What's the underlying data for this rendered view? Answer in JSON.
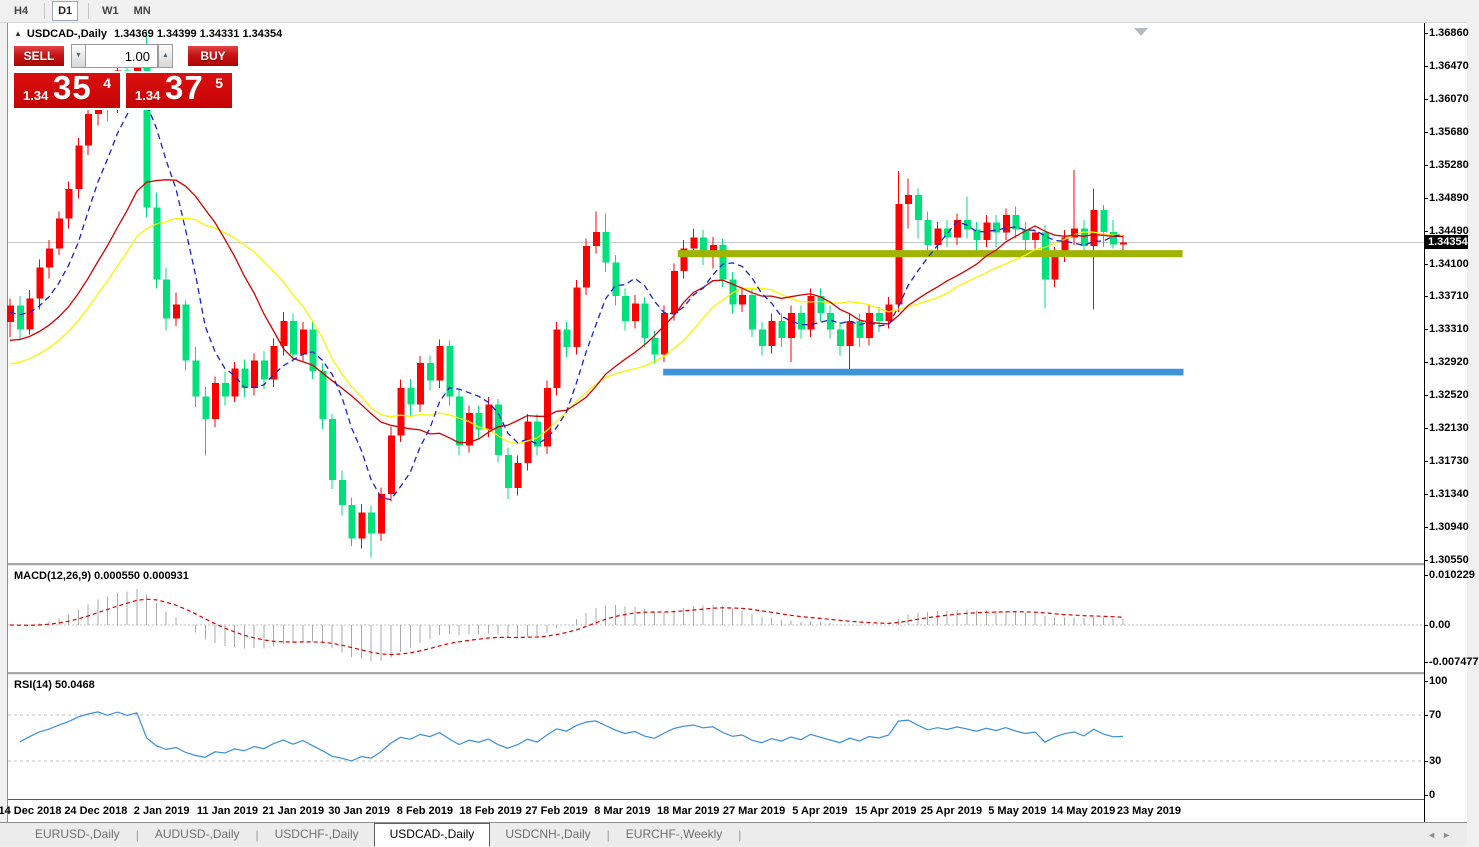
{
  "toolbar": {
    "timeframes": [
      {
        "label": "H4",
        "active": false
      },
      {
        "label": "D1",
        "active": true
      },
      {
        "label": "W1",
        "active": false
      },
      {
        "label": "MN",
        "active": false
      }
    ]
  },
  "chart_header": {
    "collapse_icon": "▲",
    "symbol_title": "USDCAD-,Daily",
    "ohlc": "1.34369 1.34399 1.34331 1.34354"
  },
  "trade_panel": {
    "sell_label": "SELL",
    "buy_label": "BUY",
    "volume": "1.00",
    "spin_down_icon": "▼",
    "spin_up_icon": "▲",
    "sell_price": {
      "big_figure": "1.34",
      "pips": "35",
      "pipette": "4"
    },
    "buy_price": {
      "big_figure": "1.34",
      "pips": "37",
      "pipette": "5"
    }
  },
  "indicators": {
    "macd_label": "MACD(12,26,9)",
    "macd_values": "0.000550 0.000931",
    "rsi_label": "RSI(14)",
    "rsi_value": "50.0468"
  },
  "tabs": {
    "items": [
      {
        "label": "EURUSD-,Daily",
        "active": false
      },
      {
        "label": "AUDUSD-,Daily",
        "active": false
      },
      {
        "label": "USDCHF-,Daily",
        "active": false
      },
      {
        "label": "USDCAD-,Daily",
        "active": true
      },
      {
        "label": "USDCNH-,Daily",
        "active": false
      },
      {
        "label": "EURCHF-,Weekly",
        "active": false
      }
    ],
    "scroll_left": "◄",
    "scroll_right": "►"
  },
  "chart_data": {
    "type": "candlestick",
    "symbol": "USDCAD-,Daily",
    "up_color": "#ff0000",
    "down_color": "#00e17c",
    "current_price": 1.34354,
    "current_price_label": "1.34354",
    "price_ticks": [
      "1.36860",
      "1.36470",
      "1.36070",
      "1.35680",
      "1.35280",
      "1.34890",
      "1.34490",
      "1.34100",
      "1.33710",
      "1.33310",
      "1.32920",
      "1.32520",
      "1.32130",
      "1.31730",
      "1.31340",
      "1.30940",
      "1.30550"
    ],
    "price_range": [
      1.3055,
      1.3686
    ],
    "time_labels": [
      "14 Dec 2018",
      "24 Dec 2018",
      "2 Jan 2019",
      "11 Jan 2019",
      "21 Jan 2019",
      "30 Jan 2019",
      "8 Feb 2019",
      "18 Feb 2019",
      "27 Feb 2019",
      "8 Mar 2019",
      "18 Mar 2019",
      "27 Mar 2019",
      "5 Apr 2019",
      "15 Apr 2019",
      "25 Apr 2019",
      "5 May 2019",
      "14 May 2019",
      "23 May 2019"
    ],
    "candles": [
      [
        1.334,
        1.3368,
        1.3322,
        1.336
      ],
      [
        1.336,
        1.3371,
        1.3318,
        1.3331
      ],
      [
        1.3331,
        1.3378,
        1.3325,
        1.3368
      ],
      [
        1.3368,
        1.3415,
        1.3355,
        1.3405
      ],
      [
        1.3405,
        1.3438,
        1.3392,
        1.3428
      ],
      [
        1.3428,
        1.3472,
        1.342,
        1.3464
      ],
      [
        1.3464,
        1.3508,
        1.3452,
        1.3499
      ],
      [
        1.3499,
        1.356,
        1.3488,
        1.3551
      ],
      [
        1.3551,
        1.36,
        1.354,
        1.3589
      ],
      [
        1.3589,
        1.3628,
        1.3575,
        1.3617
      ],
      [
        1.3617,
        1.3625,
        1.358,
        1.3599
      ],
      [
        1.3599,
        1.365,
        1.359,
        1.3641
      ],
      [
        1.3641,
        1.3652,
        1.36,
        1.3624
      ],
      [
        1.3624,
        1.3668,
        1.3614,
        1.3657
      ],
      [
        1.3657,
        1.3688,
        1.3465,
        1.3477
      ],
      [
        1.3477,
        1.3495,
        1.338,
        1.3391
      ],
      [
        1.3391,
        1.3405,
        1.333,
        1.3344
      ],
      [
        1.3344,
        1.3375,
        1.3335,
        1.3361
      ],
      [
        1.3361,
        1.3366,
        1.3282,
        1.3294
      ],
      [
        1.3294,
        1.331,
        1.3238,
        1.3251
      ],
      [
        1.3251,
        1.3262,
        1.318,
        1.3224
      ],
      [
        1.3224,
        1.3275,
        1.3214,
        1.3267
      ],
      [
        1.3267,
        1.328,
        1.324,
        1.3251
      ],
      [
        1.3251,
        1.3292,
        1.3244,
        1.3284
      ],
      [
        1.3284,
        1.3295,
        1.325,
        1.3261
      ],
      [
        1.3261,
        1.3302,
        1.3252,
        1.3294
      ],
      [
        1.3294,
        1.3305,
        1.326,
        1.3271
      ],
      [
        1.3271,
        1.332,
        1.3262,
        1.3311
      ],
      [
        1.3311,
        1.3352,
        1.33,
        1.3341
      ],
      [
        1.3341,
        1.335,
        1.3292,
        1.3301
      ],
      [
        1.3301,
        1.334,
        1.3292,
        1.3331
      ],
      [
        1.3331,
        1.334,
        1.3272,
        1.3281
      ],
      [
        1.3281,
        1.329,
        1.3212,
        1.3224
      ],
      [
        1.3224,
        1.323,
        1.314,
        1.3151
      ],
      [
        1.3151,
        1.3162,
        1.3108,
        1.3121
      ],
      [
        1.3121,
        1.313,
        1.3072,
        1.3081
      ],
      [
        1.3081,
        1.3122,
        1.3069,
        1.3112
      ],
      [
        1.3112,
        1.312,
        1.3058,
        1.3087
      ],
      [
        1.3087,
        1.3142,
        1.3078,
        1.3134
      ],
      [
        1.3134,
        1.3215,
        1.3125,
        1.3204
      ],
      [
        1.3204,
        1.3271,
        1.3196,
        1.3261
      ],
      [
        1.3261,
        1.3272,
        1.3228,
        1.3241
      ],
      [
        1.3241,
        1.3299,
        1.3232,
        1.3291
      ],
      [
        1.3291,
        1.33,
        1.3258,
        1.327
      ],
      [
        1.327,
        1.3319,
        1.3261,
        1.3311
      ],
      [
        1.3311,
        1.3318,
        1.324,
        1.3251
      ],
      [
        1.3251,
        1.326,
        1.3181,
        1.3192
      ],
      [
        1.3192,
        1.324,
        1.3184,
        1.3231
      ],
      [
        1.3231,
        1.324,
        1.32,
        1.3211
      ],
      [
        1.3211,
        1.325,
        1.3202,
        1.3241
      ],
      [
        1.3241,
        1.3248,
        1.3172,
        1.3181
      ],
      [
        1.3181,
        1.319,
        1.3128,
        1.3141
      ],
      [
        1.3141,
        1.318,
        1.3132,
        1.3171
      ],
      [
        1.3171,
        1.323,
        1.3162,
        1.3221
      ],
      [
        1.3221,
        1.323,
        1.318,
        1.3191
      ],
      [
        1.3191,
        1.327,
        1.3182,
        1.3261
      ],
      [
        1.3261,
        1.334,
        1.3252,
        1.3331
      ],
      [
        1.3331,
        1.334,
        1.3298,
        1.331
      ],
      [
        1.331,
        1.339,
        1.3301,
        1.3381
      ],
      [
        1.3381,
        1.344,
        1.3372,
        1.3431
      ],
      [
        1.3431,
        1.3472,
        1.3422,
        1.3448
      ],
      [
        1.3448,
        1.347,
        1.34,
        1.3411
      ],
      [
        1.3411,
        1.342,
        1.336,
        1.3371
      ],
      [
        1.3371,
        1.338,
        1.333,
        1.3341
      ],
      [
        1.3341,
        1.3372,
        1.3332,
        1.3362
      ],
      [
        1.3362,
        1.337,
        1.331,
        1.3321
      ],
      [
        1.3321,
        1.333,
        1.329,
        1.3301
      ],
      [
        1.3301,
        1.336,
        1.3292,
        1.3351
      ],
      [
        1.3351,
        1.341,
        1.3342,
        1.3401
      ],
      [
        1.3401,
        1.3438,
        1.3392,
        1.3428
      ],
      [
        1.3428,
        1.3452,
        1.3418,
        1.3441
      ],
      [
        1.3441,
        1.345,
        1.3408,
        1.3421
      ],
      [
        1.3421,
        1.3442,
        1.3404,
        1.3432
      ],
      [
        1.3432,
        1.344,
        1.3382,
        1.3391
      ],
      [
        1.3391,
        1.34,
        1.335,
        1.3361
      ],
      [
        1.3361,
        1.3382,
        1.3352,
        1.3372
      ],
      [
        1.3372,
        1.338,
        1.3322,
        1.3331
      ],
      [
        1.3331,
        1.334,
        1.33,
        1.3311
      ],
      [
        1.3311,
        1.335,
        1.3302,
        1.3341
      ],
      [
        1.3341,
        1.335,
        1.331,
        1.3321
      ],
      [
        1.3321,
        1.336,
        1.3292,
        1.3351
      ],
      [
        1.3351,
        1.336,
        1.332,
        1.3331
      ],
      [
        1.3331,
        1.338,
        1.3322,
        1.3371
      ],
      [
        1.3371,
        1.338,
        1.334,
        1.3351
      ],
      [
        1.3351,
        1.336,
        1.332,
        1.3331
      ],
      [
        1.3331,
        1.334,
        1.33,
        1.3311
      ],
      [
        1.3311,
        1.335,
        1.328,
        1.3341
      ],
      [
        1.3341,
        1.335,
        1.331,
        1.3321
      ],
      [
        1.3321,
        1.336,
        1.3312,
        1.3351
      ],
      [
        1.3351,
        1.3358,
        1.3328,
        1.3341
      ],
      [
        1.3341,
        1.337,
        1.3332,
        1.3361
      ],
      [
        1.3361,
        1.3521,
        1.3352,
        1.3481
      ],
      [
        1.3481,
        1.3512,
        1.3452,
        1.3492
      ],
      [
        1.3492,
        1.35,
        1.344,
        1.3462
      ],
      [
        1.3462,
        1.3472,
        1.342,
        1.3432
      ],
      [
        1.3432,
        1.346,
        1.3422,
        1.3452
      ],
      [
        1.3452,
        1.3462,
        1.343,
        1.3441
      ],
      [
        1.3441,
        1.347,
        1.3432,
        1.3462
      ],
      [
        1.3462,
        1.349,
        1.344,
        1.3451
      ],
      [
        1.3451,
        1.346,
        1.342,
        1.3438
      ],
      [
        1.3438,
        1.3468,
        1.343,
        1.3459
      ],
      [
        1.3459,
        1.3468,
        1.343,
        1.3447
      ],
      [
        1.3447,
        1.3476,
        1.3438,
        1.3468
      ],
      [
        1.3468,
        1.3478,
        1.344,
        1.3451
      ],
      [
        1.3451,
        1.346,
        1.342,
        1.3438
      ],
      [
        1.3438,
        1.345,
        1.3428,
        1.3447
      ],
      [
        1.3447,
        1.3456,
        1.3356,
        1.3391
      ],
      [
        1.3391,
        1.343,
        1.3382,
        1.3421
      ],
      [
        1.3421,
        1.345,
        1.3412,
        1.3441
      ],
      [
        1.3441,
        1.3522,
        1.3432,
        1.3452
      ],
      [
        1.3452,
        1.3462,
        1.342,
        1.3431
      ],
      [
        1.3431,
        1.35,
        1.3355,
        1.3474
      ],
      [
        1.3474,
        1.348,
        1.343,
        1.3448
      ],
      [
        1.3448,
        1.3462,
        1.3428,
        1.3433
      ],
      [
        1.3433,
        1.3444,
        1.3422,
        1.34354
      ]
    ],
    "moving_averages": [
      {
        "name": "slow-ma",
        "period": 20,
        "color": "#f7f700",
        "style": "solid",
        "seed": 1.3286
      },
      {
        "name": "medium-ma",
        "period": 15,
        "color": "#d40000",
        "style": "solid",
        "seed": 1.3315
      },
      {
        "name": "fast-ma",
        "period": 7,
        "color": "#1822cf",
        "style": "dashed",
        "seed": 1.335
      }
    ],
    "horizontal_bands": [
      {
        "name": "resistance-band",
        "price_top": 1.3426,
        "price_bottom": 1.34175,
        "start_index": 68.4,
        "end_index": 120.1,
        "color": "#9fb400"
      },
      {
        "name": "support-band",
        "price_top": 1.3284,
        "price_bottom": 1.3276,
        "start_index": 66.9,
        "end_index": 120.2,
        "color": "#3d93d8"
      }
    ],
    "macd": {
      "fast": 12,
      "slow": 26,
      "signal": 9,
      "histogram_color": "#ababab",
      "signal_color": "#e00000",
      "axis_ticks": [
        "0.010229",
        "0.00",
        "-0.007477"
      ],
      "axis_values": [
        0.010229,
        0,
        -0.007477
      ]
    },
    "rsi": {
      "period": 14,
      "color": "#3a8ede",
      "levels": [
        70,
        30
      ],
      "axis_ticks": [
        "100",
        "70",
        "30",
        "0"
      ],
      "axis_values": [
        100,
        70,
        30,
        0
      ]
    }
  }
}
